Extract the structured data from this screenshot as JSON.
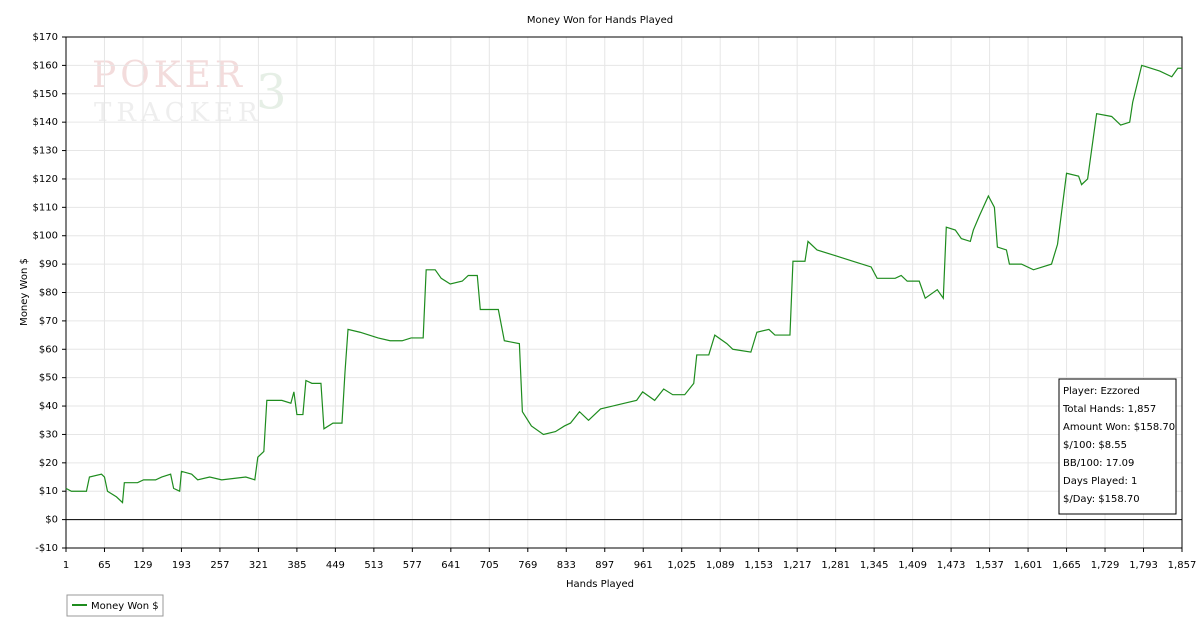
{
  "chart_data": {
    "type": "line",
    "title": "Money Won for Hands Played",
    "x_label": "Hands Played",
    "y_label": "Money Won $",
    "watermark": [
      "POKER",
      "TRACKER",
      "3"
    ],
    "annotations": [
      "Player: Ezzored",
      "Total Hands: 1,857",
      "Amount Won: $158.70",
      "$/100: $8.55",
      "BB/100: 17.09",
      "Days Played: 1",
      "$/Day: $158.70"
    ],
    "xlim": [
      1,
      1857
    ],
    "ylim": [
      -10,
      170
    ],
    "xticks": [
      1,
      65,
      129,
      193,
      257,
      321,
      385,
      449,
      513,
      577,
      641,
      705,
      769,
      833,
      897,
      961,
      {
        "value": 1025,
        "label": "1,025"
      },
      {
        "value": 1089,
        "label": "1,089"
      },
      {
        "value": 1153,
        "label": "1,153"
      },
      {
        "value": 1217,
        "label": "1,217"
      },
      {
        "value": 1281,
        "label": "1,281"
      },
      {
        "value": 1345,
        "label": "1,345"
      },
      {
        "value": 1409,
        "label": "1,409"
      },
      {
        "value": 1473,
        "label": "1,473"
      },
      {
        "value": 1537,
        "label": "1,537"
      },
      {
        "value": 1601,
        "label": "1,601"
      },
      {
        "value": 1665,
        "label": "1,665"
      },
      {
        "value": 1729,
        "label": "1,729"
      },
      {
        "value": 1793,
        "label": "1,793"
      },
      {
        "value": 1857,
        "label": "1,857"
      }
    ],
    "yticks": [
      {
        "value": -10,
        "label": "-$10"
      },
      {
        "value": 0,
        "label": "$0"
      },
      {
        "value": 10,
        "label": "$10"
      },
      {
        "value": 20,
        "label": "$20"
      },
      {
        "value": 30,
        "label": "$30"
      },
      {
        "value": 40,
        "label": "$40"
      },
      {
        "value": 50,
        "label": "$50"
      },
      {
        "value": 60,
        "label": "$60"
      },
      {
        "value": 70,
        "label": "$70"
      },
      {
        "value": 80,
        "label": "$80"
      },
      {
        "value": 90,
        "label": "$90"
      },
      {
        "value": 100,
        "label": "$100"
      },
      {
        "value": 110,
        "label": "$110"
      },
      {
        "value": 120,
        "label": "$120"
      },
      {
        "value": 130,
        "label": "$130"
      },
      {
        "value": 140,
        "label": "$140"
      },
      {
        "value": 150,
        "label": "$150"
      },
      {
        "value": 160,
        "label": "$160"
      },
      {
        "value": 170,
        "label": "$170"
      }
    ],
    "grid": true,
    "zero_line": true,
    "legend": "bottom-left",
    "x": [
      1,
      10,
      35,
      40,
      60,
      65,
      70,
      85,
      95,
      98,
      120,
      130,
      150,
      160,
      175,
      180,
      190,
      193,
      210,
      220,
      240,
      260,
      300,
      315,
      320,
      330,
      335,
      360,
      375,
      380,
      385,
      395,
      400,
      410,
      425,
      430,
      445,
      460,
      465,
      470,
      490,
      520,
      540,
      560,
      575,
      595,
      600,
      615,
      625,
      640,
      660,
      670,
      685,
      690,
      720,
      730,
      755,
      760,
      775,
      795,
      815,
      830,
      840,
      855,
      870,
      890,
      910,
      930,
      950,
      960,
      980,
      995,
      1010,
      1030,
      1045,
      1050,
      1070,
      1080,
      1100,
      1110,
      1140,
      1150,
      1170,
      1180,
      1205,
      1210,
      1230,
      1235,
      1250,
      1280,
      1310,
      1340,
      1350,
      1380,
      1390,
      1400,
      1420,
      1430,
      1450,
      1460,
      1465,
      1480,
      1490,
      1505,
      1510,
      1520,
      1535,
      1545,
      1550,
      1565,
      1570,
      1590,
      1610,
      1625,
      1640,
      1650,
      1665,
      1685,
      1690,
      1700,
      1715,
      1740,
      1755,
      1770,
      1775,
      1790,
      1805,
      1820,
      1840,
      1850,
      1857
    ],
    "series": [
      {
        "name": "Money Won $",
        "color": "#1e8c1e",
        "values": [
          11,
          10,
          10,
          15,
          16,
          15,
          10,
          8,
          6,
          13,
          13,
          14,
          14,
          15,
          16,
          11,
          10,
          17,
          16,
          14,
          15,
          14,
          15,
          14,
          22,
          24,
          42,
          42,
          41,
          45,
          37,
          37,
          49,
          48,
          48,
          32,
          34,
          34,
          52,
          67,
          66,
          64,
          63,
          63,
          64,
          64,
          88,
          88,
          85,
          83,
          84,
          86,
          86,
          74,
          74,
          63,
          62,
          38,
          33,
          30,
          31,
          33,
          34,
          38,
          35,
          39,
          40,
          41,
          42,
          45,
          42,
          46,
          44,
          44,
          48,
          58,
          58,
          65,
          62,
          60,
          59,
          66,
          67,
          65,
          65,
          91,
          91,
          98,
          95,
          93,
          91,
          89,
          85,
          85,
          86,
          84,
          84,
          78,
          81,
          78,
          103,
          102,
          99,
          98,
          102,
          107,
          114,
          110,
          96,
          95,
          90,
          90,
          88,
          89,
          90,
          97,
          122,
          121,
          118,
          120,
          143,
          142,
          139,
          140,
          147,
          160,
          159,
          158,
          156,
          159,
          159
        ]
      }
    ]
  }
}
